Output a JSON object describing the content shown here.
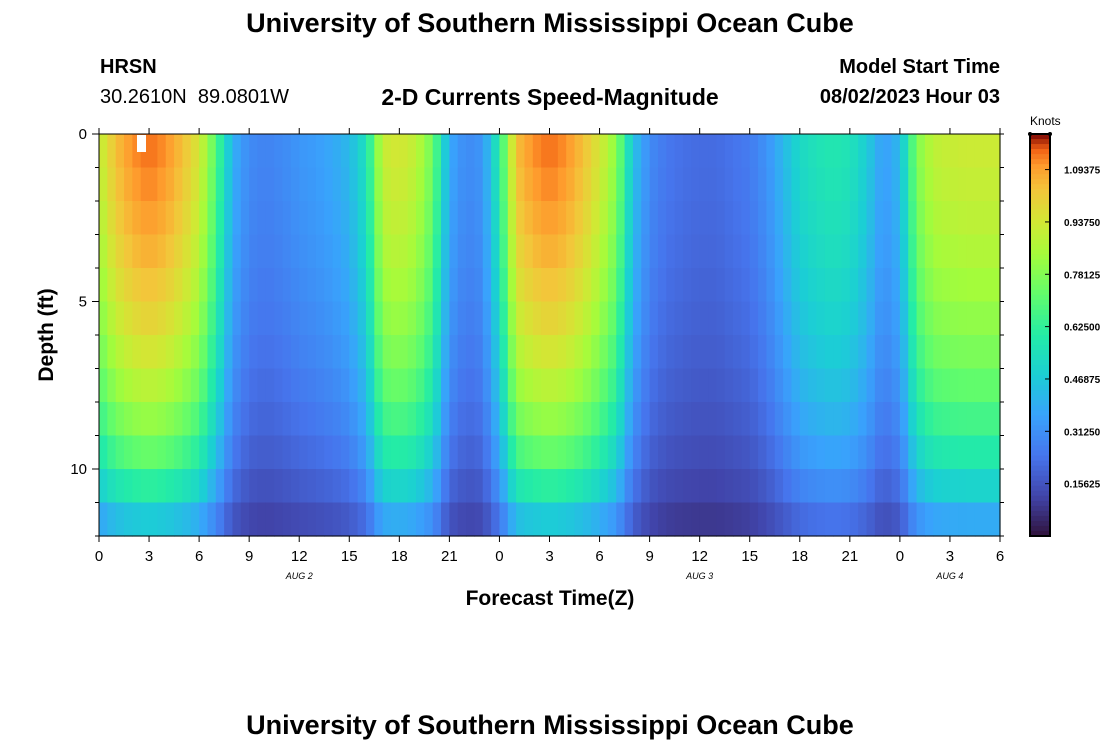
{
  "page": {
    "title": "University of Southern Mississippi Ocean Cube",
    "station": "HRSN",
    "coords": "30.2610N  89.0801W",
    "subtitle": "2-D Currents Speed-Magnitude",
    "model_start_label": "Model Start Time",
    "model_start_value": "08/02/2023 Hour 03",
    "footer_title": "University of Southern Mississippi Ocean Cube"
  },
  "chart_data": {
    "type": "heatmap",
    "title": "2-D Currents Speed-Magnitude",
    "xlabel": "Forecast Time(Z)",
    "ylabel": "Depth (ft)",
    "xlim": [
      0,
      54
    ],
    "ylim": [
      0,
      12
    ],
    "y_inverted": true,
    "x_ticks": [
      0,
      3,
      6,
      9,
      12,
      15,
      18,
      21,
      24,
      27,
      30,
      33,
      36,
      39,
      42,
      45,
      48,
      51,
      54
    ],
    "x_tick_labels": [
      "0",
      "3",
      "6",
      "9",
      "12",
      "15",
      "18",
      "21",
      "0",
      "3",
      "6",
      "9",
      "12",
      "15",
      "18",
      "21",
      "0",
      "3",
      "6"
    ],
    "y_ticks": [
      0,
      5,
      10
    ],
    "y_tick_labels": [
      "0",
      "5",
      "10"
    ],
    "date_labels": [
      {
        "x": 12,
        "label": "AUG 2"
      },
      {
        "x": 36,
        "label": "AUG 3"
      },
      {
        "x": 51,
        "label": "AUG 4"
      }
    ],
    "colorbar": {
      "label": "Knots",
      "min": 0.0,
      "max": 1.2,
      "ticks": [
        0.15625,
        0.3125,
        0.46875,
        0.625,
        0.78125,
        0.9375,
        1.09375
      ],
      "tick_labels": [
        "0.15625",
        "0.31250",
        "0.46875",
        "0.62500",
        "0.78125",
        "0.93750",
        "1.09375"
      ]
    },
    "surface_profile": {
      "hours": [
        0,
        1,
        2,
        3,
        4,
        5,
        6,
        7,
        8,
        9,
        10,
        11,
        12,
        13,
        14,
        15,
        16,
        17,
        18,
        19,
        20,
        21,
        22,
        23,
        24,
        25,
        26,
        27,
        28,
        29,
        30,
        31,
        32,
        33,
        34,
        35,
        36,
        37,
        38,
        39,
        40,
        41,
        42,
        43,
        44,
        45,
        46,
        47,
        48,
        49,
        50,
        51,
        52,
        53,
        54
      ],
      "speed": [
        0.9,
        1.05,
        1.12,
        1.15,
        1.12,
        1.05,
        0.95,
        0.7,
        0.4,
        0.3,
        0.28,
        0.3,
        0.33,
        0.35,
        0.38,
        0.42,
        0.55,
        0.92,
        0.95,
        0.9,
        0.75,
        0.38,
        0.3,
        0.33,
        0.6,
        1.05,
        1.12,
        1.15,
        1.12,
        1.05,
        0.95,
        0.8,
        0.45,
        0.3,
        0.25,
        0.23,
        0.22,
        0.22,
        0.24,
        0.26,
        0.32,
        0.42,
        0.52,
        0.56,
        0.58,
        0.56,
        0.48,
        0.35,
        0.42,
        0.78,
        0.9,
        0.92,
        0.93,
        0.93,
        0.93
      ]
    },
    "depth_factor_ft": [
      0,
      2,
      4,
      6,
      8,
      10,
      12
    ],
    "depth_factor": [
      1.0,
      0.97,
      0.92,
      0.85,
      0.75,
      0.6,
      0.35
    ]
  }
}
